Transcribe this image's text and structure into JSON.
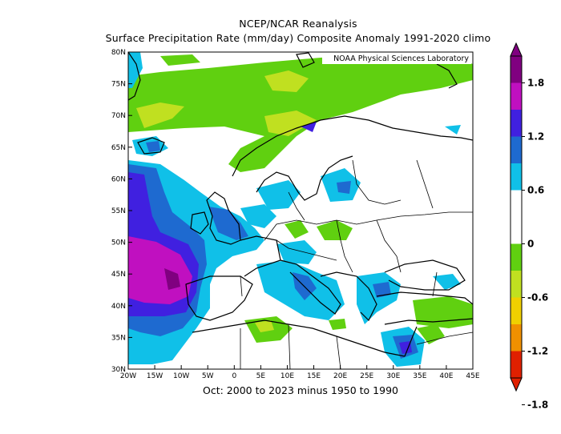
{
  "title": {
    "line1": "NCEP/NCAR Reanalysis",
    "line2": "Surface Precipitation Rate (mm/day) Composite Anomaly 1991-2020 climo"
  },
  "credit": "NOAA Physical Sciences Laboratory",
  "caption": "Oct: 2000 to 2023 minus 1950 to 1990",
  "map": {
    "lon_range": [
      -20,
      45
    ],
    "lat_range": [
      30,
      80
    ],
    "lon_ticks": [
      "20W",
      "15W",
      "10W",
      "5W",
      "0",
      "5E",
      "10E",
      "15E",
      "20E",
      "25E",
      "30E",
      "35E",
      "40E",
      "45E"
    ],
    "lat_ticks": [
      "30N",
      "35N",
      "40N",
      "45N",
      "50N",
      "55N",
      "60N",
      "65N",
      "70N",
      "75N",
      "80N"
    ]
  },
  "colorbar": {
    "labels": [
      "1.8",
      "1.2",
      "0.6",
      "0",
      "-0.6",
      "-1.2",
      "-1.8"
    ],
    "colors": [
      "#800080",
      "#c010c0",
      "#4020e0",
      "#1e6ad0",
      "#10c0e8",
      "#ffffff",
      "#ffffff",
      "#60d010",
      "#c0e020",
      "#f0d000",
      "#f09000",
      "#e02000"
    ]
  }
}
